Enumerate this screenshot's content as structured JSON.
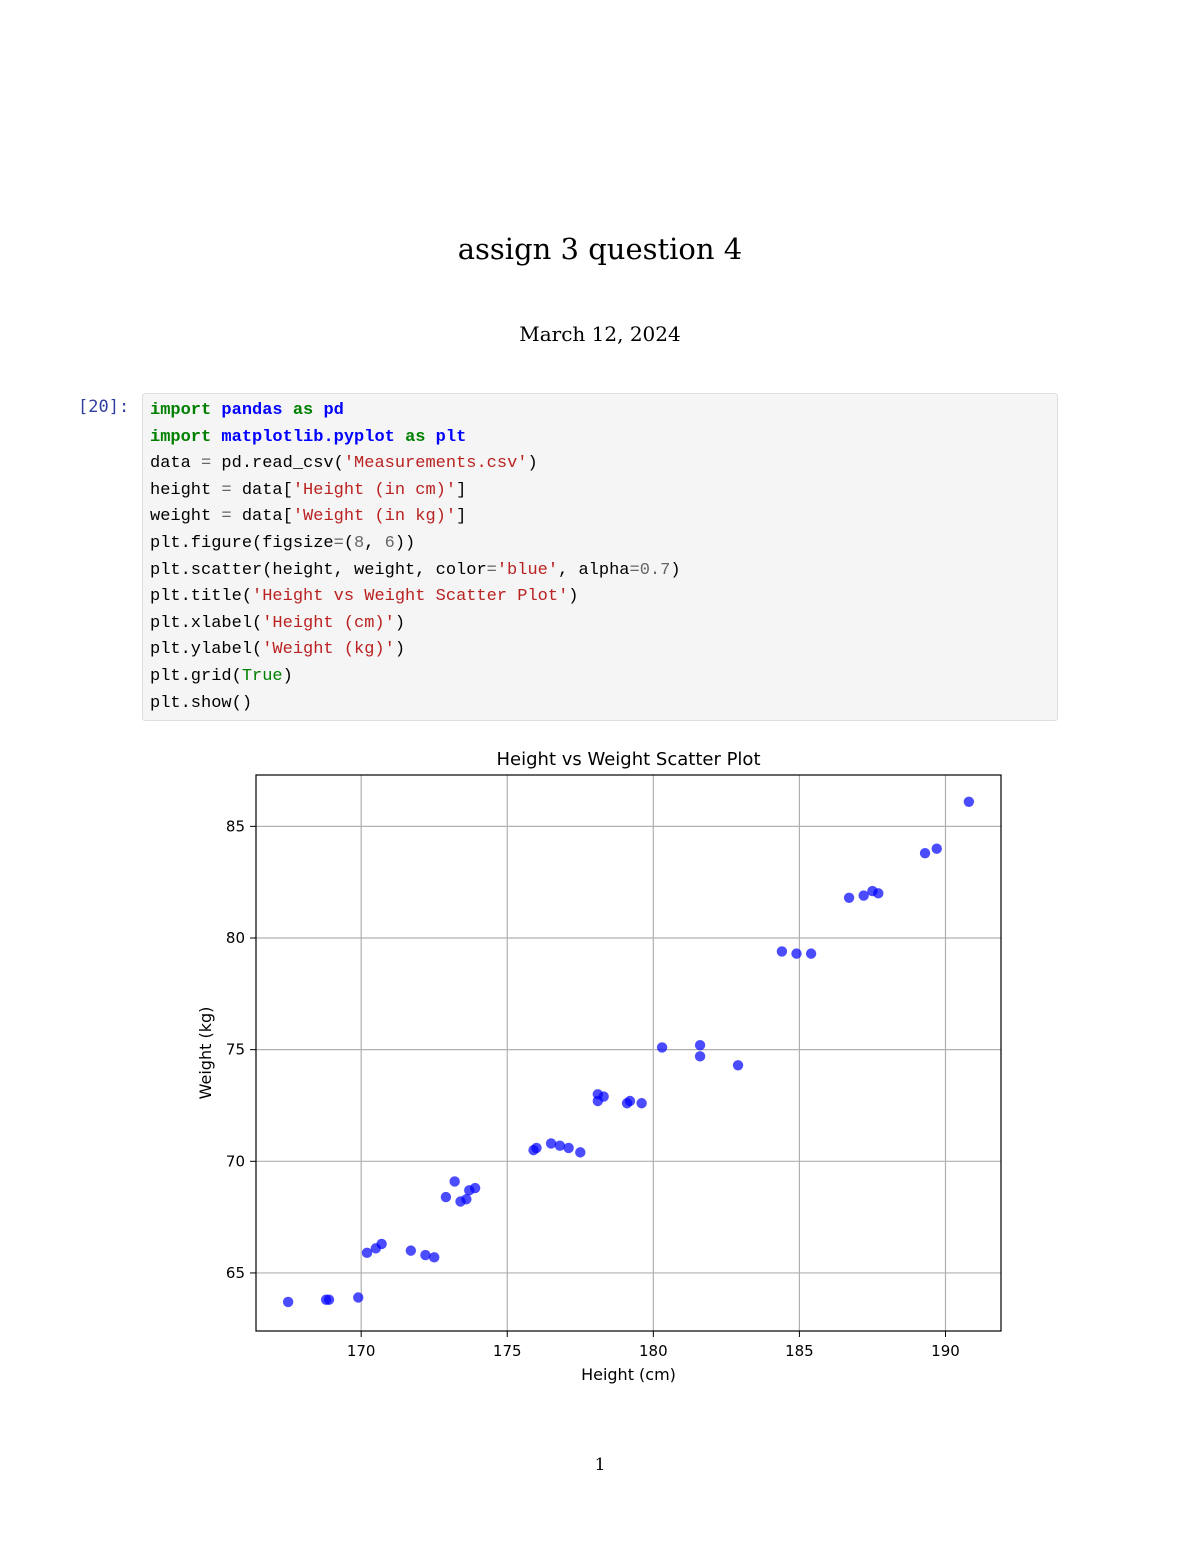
{
  "document": {
    "title": "assign 3 question 4",
    "date": "March 12, 2024",
    "page_number": "1"
  },
  "cell": {
    "prompt": "[20]:",
    "code_lines": [
      [
        {
          "t": "import",
          "c": "kw"
        },
        {
          "t": " "
        },
        {
          "t": "pandas",
          "c": "nm"
        },
        {
          "t": " "
        },
        {
          "t": "as",
          "c": "kw"
        },
        {
          "t": " "
        },
        {
          "t": "pd",
          "c": "nm"
        }
      ],
      [
        {
          "t": "import",
          "c": "kw"
        },
        {
          "t": " "
        },
        {
          "t": "matplotlib.pyplot",
          "c": "nm"
        },
        {
          "t": " "
        },
        {
          "t": "as",
          "c": "kw"
        },
        {
          "t": " "
        },
        {
          "t": "plt",
          "c": "nm"
        }
      ],
      [
        {
          "t": "data "
        },
        {
          "t": "=",
          "c": "op"
        },
        {
          "t": " pd.read_csv("
        },
        {
          "t": "'Measurements.csv'",
          "c": "st"
        },
        {
          "t": ")"
        }
      ],
      [
        {
          "t": "height "
        },
        {
          "t": "=",
          "c": "op"
        },
        {
          "t": " data["
        },
        {
          "t": "'Height (in cm)'",
          "c": "st"
        },
        {
          "t": "]"
        }
      ],
      [
        {
          "t": "weight "
        },
        {
          "t": "=",
          "c": "op"
        },
        {
          "t": " data["
        },
        {
          "t": "'Weight (in kg)'",
          "c": "st"
        },
        {
          "t": "]"
        }
      ],
      [
        {
          "t": "plt.figure(figsize"
        },
        {
          "t": "=",
          "c": "op"
        },
        {
          "t": "("
        },
        {
          "t": "8",
          "c": "num"
        },
        {
          "t": ", "
        },
        {
          "t": "6",
          "c": "num"
        },
        {
          "t": "))"
        }
      ],
      [
        {
          "t": "plt.scatter(height, weight, color"
        },
        {
          "t": "=",
          "c": "op"
        },
        {
          "t": "'blue'",
          "c": "st"
        },
        {
          "t": ", alpha"
        },
        {
          "t": "=",
          "c": "op"
        },
        {
          "t": "0.7",
          "c": "num"
        },
        {
          "t": ")"
        }
      ],
      [
        {
          "t": "plt.title("
        },
        {
          "t": "'Height vs Weight Scatter Plot'",
          "c": "st"
        },
        {
          "t": ")"
        }
      ],
      [
        {
          "t": "plt.xlabel("
        },
        {
          "t": "'Height (cm)'",
          "c": "st"
        },
        {
          "t": ")"
        }
      ],
      [
        {
          "t": "plt.ylabel("
        },
        {
          "t": "'Weight (kg)'",
          "c": "st"
        },
        {
          "t": ")"
        }
      ],
      [
        {
          "t": "plt.grid("
        },
        {
          "t": "True",
          "c": "bi"
        },
        {
          "t": ")"
        }
      ],
      [
        {
          "t": "plt.show()"
        }
      ]
    ]
  },
  "chart_data": {
    "type": "scatter",
    "title": "Height vs Weight Scatter Plot",
    "xlabel": "Height (cm)",
    "ylabel": "Weight (kg)",
    "xlim": [
      166.4,
      191.9
    ],
    "ylim": [
      62.4,
      87.3
    ],
    "xticks": [
      170,
      175,
      180,
      185,
      190
    ],
    "yticks": [
      65,
      70,
      75,
      80,
      85
    ],
    "grid": true,
    "marker_color": "#0000ff",
    "alpha": 0.7,
    "points": [
      [
        167.5,
        63.7
      ],
      [
        168.8,
        63.8
      ],
      [
        168.9,
        63.8
      ],
      [
        169.9,
        63.9
      ],
      [
        170.2,
        65.9
      ],
      [
        170.5,
        66.1
      ],
      [
        170.7,
        66.3
      ],
      [
        171.7,
        66.0
      ],
      [
        172.2,
        65.8
      ],
      [
        172.5,
        65.7
      ],
      [
        172.9,
        68.4
      ],
      [
        173.2,
        69.1
      ],
      [
        173.4,
        68.2
      ],
      [
        173.6,
        68.3
      ],
      [
        173.7,
        68.7
      ],
      [
        173.9,
        68.8
      ],
      [
        175.9,
        70.5
      ],
      [
        176.0,
        70.6
      ],
      [
        176.5,
        70.8
      ],
      [
        176.8,
        70.7
      ],
      [
        177.1,
        70.6
      ],
      [
        177.5,
        70.4
      ],
      [
        178.1,
        72.7
      ],
      [
        178.1,
        73.0
      ],
      [
        178.3,
        72.9
      ],
      [
        179.1,
        72.6
      ],
      [
        179.2,
        72.7
      ],
      [
        179.6,
        72.6
      ],
      [
        180.3,
        75.1
      ],
      [
        181.6,
        75.2
      ],
      [
        181.6,
        74.7
      ],
      [
        182.9,
        74.3
      ],
      [
        184.4,
        79.4
      ],
      [
        184.9,
        79.3
      ],
      [
        185.4,
        79.3
      ],
      [
        186.7,
        81.8
      ],
      [
        187.2,
        81.9
      ],
      [
        187.5,
        82.1
      ],
      [
        187.7,
        82.0
      ],
      [
        189.3,
        83.8
      ],
      [
        189.7,
        84.0
      ],
      [
        190.8,
        86.1
      ]
    ]
  }
}
